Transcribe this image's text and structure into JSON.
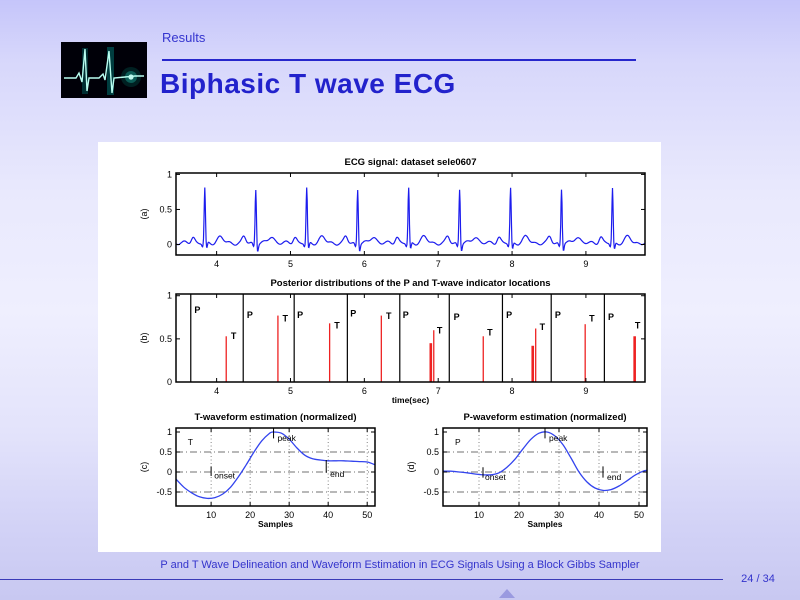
{
  "header": {
    "section": "Results",
    "title": "Biphasic T wave ECG"
  },
  "footer": {
    "text": "P and T Wave Delineation and Waveform Estimation in ECG Signals Using a Block Gibbs Sampler",
    "page": "24 / 34"
  },
  "colors": {
    "accent": "#2222cc",
    "ecg_line": "#1c1cee",
    "stem_red": "#ee2222",
    "footer_text": "#3434cc"
  },
  "chart_data": [
    {
      "id": "ecg_signal",
      "type": "line",
      "title": "ECG signal: dataset sele0607",
      "ylabel": "(a)",
      "xlim": [
        3.45,
        9.8
      ],
      "ylim": [
        -0.15,
        1.02
      ],
      "xticks": [
        4,
        5,
        6,
        7,
        8,
        9
      ],
      "yticks": [
        0,
        0.5,
        1
      ],
      "line_color": "#1c1cee",
      "r_peaks": [
        3.84,
        4.53,
        5.22,
        5.91,
        6.6,
        7.29,
        7.98,
        8.67,
        9.36
      ],
      "peak_height": 0.78,
      "description": "ECG trace, 9 beats each with small P wave, sharp QRS spike to ~0.8 and low T wave"
    },
    {
      "id": "posterior",
      "type": "stem",
      "title": "Posterior distributions of the P and T-wave indicator locations",
      "ylabel": "(b)",
      "xlabel": "time(sec)",
      "xlim": [
        3.45,
        9.8
      ],
      "ylim": [
        0,
        1.02
      ],
      "xticks": [
        4,
        5,
        6,
        7,
        8,
        9
      ],
      "yticks": [
        0,
        0.5,
        1
      ],
      "stem_color": "#ee2222",
      "dividers": [
        3.65,
        4.36,
        5.05,
        5.77,
        6.48,
        7.15,
        7.87,
        8.53,
        9.25
      ],
      "stems": [
        {
          "x": 4.13,
          "h": 0.53,
          "w": 1
        },
        {
          "x": 4.83,
          "h": 0.77,
          "w": 1
        },
        {
          "x": 5.53,
          "h": 0.68,
          "w": 1
        },
        {
          "x": 6.23,
          "h": 0.77,
          "w": 1
        },
        {
          "x": 6.9,
          "h": 0.45,
          "w": 3
        },
        {
          "x": 6.94,
          "h": 0.6,
          "w": 1
        },
        {
          "x": 7.61,
          "h": 0.53,
          "w": 1
        },
        {
          "x": 8.28,
          "h": 0.42,
          "w": 3
        },
        {
          "x": 8.32,
          "h": 0.62,
          "w": 1
        },
        {
          "x": 8.99,
          "h": 0.67,
          "w": 1
        },
        {
          "x": 9.66,
          "h": 0.53,
          "w": 3
        }
      ],
      "labels": [
        {
          "text": "P",
          "x": 3.74,
          "y": 0.8
        },
        {
          "text": "T",
          "x": 4.23,
          "y": 0.5
        },
        {
          "text": "P",
          "x": 4.45,
          "y": 0.74
        },
        {
          "text": "T",
          "x": 4.93,
          "y": 0.7
        },
        {
          "text": "P",
          "x": 5.13,
          "y": 0.74
        },
        {
          "text": "T",
          "x": 5.63,
          "y": 0.62
        },
        {
          "text": "P",
          "x": 5.85,
          "y": 0.76
        },
        {
          "text": "T",
          "x": 6.33,
          "y": 0.73
        },
        {
          "text": "P",
          "x": 6.56,
          "y": 0.74
        },
        {
          "text": "T",
          "x": 7.02,
          "y": 0.56
        },
        {
          "text": "P",
          "x": 7.25,
          "y": 0.72
        },
        {
          "text": "T",
          "x": 7.7,
          "y": 0.54
        },
        {
          "text": "P",
          "x": 7.96,
          "y": 0.74
        },
        {
          "text": "T",
          "x": 8.41,
          "y": 0.6
        },
        {
          "text": "P",
          "x": 8.62,
          "y": 0.74
        },
        {
          "text": "T",
          "x": 9.08,
          "y": 0.7
        },
        {
          "text": "P",
          "x": 9.34,
          "y": 0.72
        },
        {
          "text": "T",
          "x": 9.7,
          "y": 0.62
        }
      ]
    },
    {
      "id": "t_waveform",
      "type": "line",
      "title": "T-waveform estimation (normalized)",
      "ylabel": "(c)",
      "xlabel": "Samples",
      "xlim": [
        1,
        52
      ],
      "ylim": [
        -0.85,
        1.1
      ],
      "xticks": [
        10,
        20,
        30,
        40,
        50
      ],
      "yticks": [
        -0.5,
        0,
        0.5,
        1
      ],
      "grid_x": [
        10,
        20,
        30,
        40,
        50
      ],
      "grid_y": [
        -0.5,
        0,
        0.5
      ],
      "line_color": "#3344ee",
      "x": [
        1,
        3,
        5,
        7,
        9,
        11,
        13,
        15,
        17,
        19,
        21,
        23,
        25,
        26,
        28,
        30,
        32,
        34,
        36,
        38,
        40,
        42,
        44,
        46,
        48,
        50,
        52
      ],
      "y": [
        -0.18,
        -0.38,
        -0.52,
        -0.62,
        -0.66,
        -0.64,
        -0.55,
        -0.38,
        -0.12,
        0.18,
        0.5,
        0.78,
        0.97,
        1.0,
        0.97,
        0.82,
        0.6,
        0.42,
        0.33,
        0.3,
        0.28,
        0.28,
        0.28,
        0.27,
        0.26,
        0.25,
        0.18
      ],
      "annotations": [
        {
          "text": "T",
          "x": 4,
          "y": 0.68
        },
        {
          "text": "onset",
          "x": 10.8,
          "y": -0.16,
          "tick_x": 10,
          "tick_y1": 0.14,
          "tick_y2": -0.1
        },
        {
          "text": "peak",
          "x": 27,
          "y": 0.78,
          "tick_x": 26,
          "tick_y1": 1.1,
          "tick_y2": 0.84
        },
        {
          "text": "end",
          "x": 40.5,
          "y": -0.12,
          "tick_x": 39.5,
          "tick_y1": 0.3,
          "tick_y2": -0.02
        }
      ]
    },
    {
      "id": "p_waveform",
      "type": "line",
      "title": "P-waveform estimation (normalized)",
      "ylabel": "(d)",
      "xlabel": "Samples",
      "xlim": [
        1,
        52
      ],
      "ylim": [
        -0.85,
        1.1
      ],
      "xticks": [
        10,
        20,
        30,
        40,
        50
      ],
      "yticks": [
        -0.5,
        0,
        0.5,
        1
      ],
      "grid_x": [
        10,
        20,
        30,
        40,
        50
      ],
      "grid_y": [
        -0.5,
        0,
        0.5
      ],
      "line_color": "#3344ee",
      "x": [
        1,
        3,
        5,
        7,
        9,
        11,
        13,
        15,
        17,
        19,
        21,
        23,
        25,
        27,
        29,
        31,
        33,
        35,
        37,
        39,
        41,
        43,
        45,
        47,
        49,
        51,
        52
      ],
      "y": [
        0.02,
        0.02,
        0,
        -0.02,
        -0.05,
        -0.07,
        -0.07,
        -0.02,
        0.12,
        0.32,
        0.58,
        0.82,
        0.97,
        1.0,
        0.9,
        0.68,
        0.35,
        0,
        -0.25,
        -0.4,
        -0.46,
        -0.44,
        -0.35,
        -0.22,
        -0.08,
        0.02,
        0.04
      ],
      "annotations": [
        {
          "text": "P",
          "x": 4,
          "y": 0.68
        },
        {
          "text": "onset",
          "x": 11.5,
          "y": -0.2,
          "tick_x": 11,
          "tick_y1": 0.12,
          "tick_y2": -0.14
        },
        {
          "text": "peak",
          "x": 27.5,
          "y": 0.78,
          "tick_x": 26.5,
          "tick_y1": 1.1,
          "tick_y2": 0.84
        },
        {
          "text": "end",
          "x": 42,
          "y": -0.2,
          "tick_x": 41,
          "tick_y1": 0.14,
          "tick_y2": -0.14
        }
      ]
    }
  ]
}
